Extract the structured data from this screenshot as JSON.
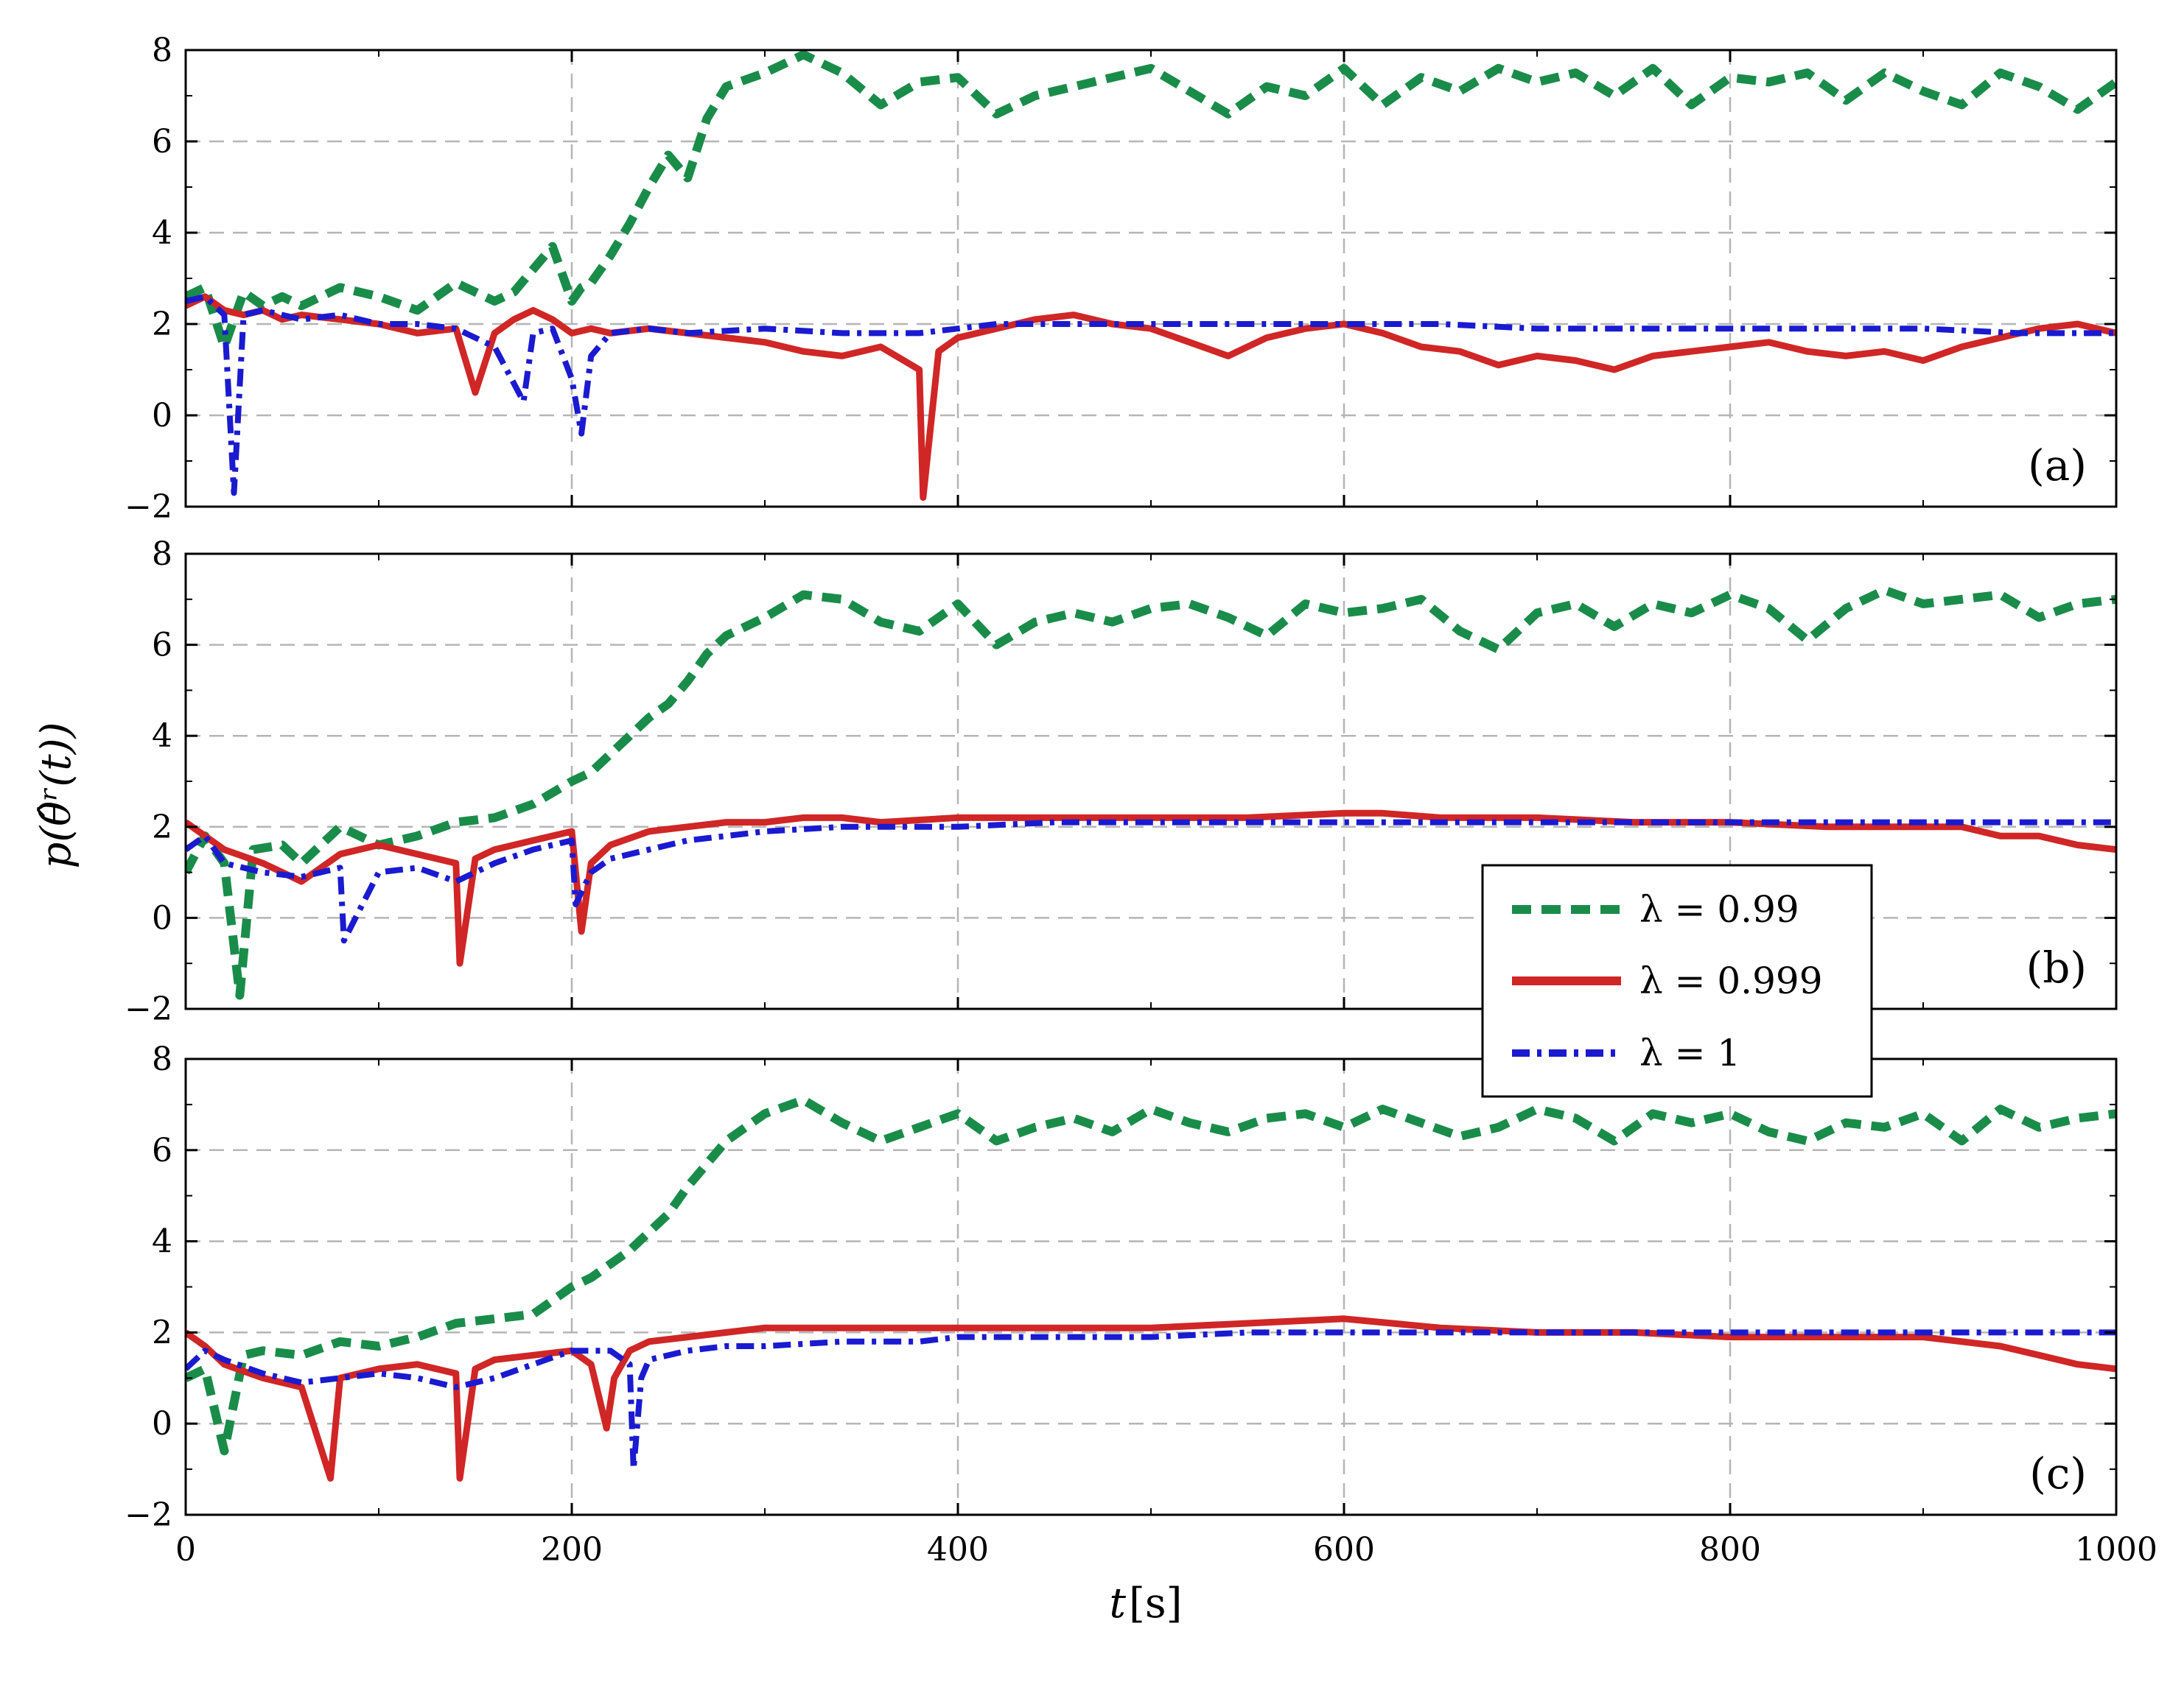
{
  "chart_data": [
    {
      "type": "line",
      "panel_label": "(a)",
      "x_range": [
        0,
        1000
      ],
      "ylim": [
        -2,
        8
      ],
      "xticks": [
        0,
        200,
        400,
        600,
        800,
        1000
      ],
      "yticks": [
        -2,
        0,
        2,
        4,
        6,
        8
      ],
      "grid": true,
      "series": [
        {
          "name": "λ = 0.99",
          "color": "#1a8c4a",
          "style": "dashed",
          "x": [
            0,
            10,
            20,
            30,
            40,
            50,
            60,
            80,
            100,
            120,
            140,
            160,
            170,
            180,
            190,
            200,
            205,
            210,
            220,
            230,
            240,
            250,
            260,
            270,
            280,
            300,
            320,
            340,
            360,
            380,
            400,
            420,
            440,
            460,
            480,
            500,
            520,
            540,
            560,
            580,
            600,
            620,
            640,
            660,
            680,
            700,
            720,
            740,
            760,
            780,
            800,
            820,
            840,
            860,
            880,
            900,
            920,
            940,
            960,
            980,
            1000
          ],
          "y": [
            2.6,
            2.8,
            1.5,
            2.7,
            2.4,
            2.6,
            2.4,
            2.8,
            2.6,
            2.3,
            2.9,
            2.5,
            2.7,
            3.2,
            3.7,
            2.5,
            2.8,
            2.9,
            3.5,
            4.2,
            5.0,
            5.7,
            5.2,
            6.5,
            7.2,
            7.5,
            7.9,
            7.5,
            6.8,
            7.3,
            7.4,
            6.6,
            7.0,
            7.2,
            7.4,
            7.6,
            7.1,
            6.6,
            7.2,
            7.0,
            7.6,
            6.8,
            7.4,
            7.1,
            7.6,
            7.3,
            7.5,
            7.0,
            7.6,
            6.8,
            7.4,
            7.3,
            7.5,
            6.9,
            7.5,
            7.1,
            6.8,
            7.5,
            7.2,
            6.7,
            7.3
          ]
        },
        {
          "name": "λ = 0.999",
          "color": "#d02626",
          "style": "solid",
          "x": [
            0,
            10,
            20,
            30,
            40,
            50,
            60,
            80,
            100,
            120,
            140,
            150,
            160,
            170,
            180,
            190,
            200,
            210,
            220,
            240,
            260,
            280,
            300,
            320,
            340,
            360,
            380,
            382,
            390,
            400,
            420,
            440,
            460,
            480,
            500,
            520,
            540,
            560,
            580,
            600,
            620,
            640,
            660,
            680,
            700,
            720,
            740,
            760,
            780,
            800,
            820,
            840,
            860,
            880,
            900,
            920,
            940,
            960,
            980,
            1000
          ],
          "y": [
            2.4,
            2.6,
            2.3,
            2.2,
            2.3,
            2.1,
            2.2,
            2.1,
            2.0,
            1.8,
            1.9,
            0.5,
            1.8,
            2.1,
            2.3,
            2.1,
            1.8,
            1.9,
            1.8,
            1.9,
            1.8,
            1.7,
            1.6,
            1.4,
            1.3,
            1.5,
            1.0,
            -1.8,
            1.4,
            1.7,
            1.9,
            2.1,
            2.2,
            2.0,
            1.9,
            1.6,
            1.3,
            1.7,
            1.9,
            2.0,
            1.8,
            1.5,
            1.4,
            1.1,
            1.3,
            1.2,
            1.0,
            1.3,
            1.4,
            1.5,
            1.6,
            1.4,
            1.3,
            1.4,
            1.2,
            1.5,
            1.7,
            1.9,
            2.0,
            1.8
          ]
        },
        {
          "name": "λ = 1",
          "color": "#1a1ad0",
          "style": "dashdot",
          "x": [
            0,
            10,
            20,
            25,
            30,
            40,
            60,
            80,
            100,
            120,
            140,
            160,
            175,
            180,
            190,
            200,
            205,
            210,
            220,
            240,
            260,
            300,
            340,
            380,
            400,
            420,
            440,
            460,
            480,
            500,
            550,
            600,
            650,
            700,
            750,
            800,
            850,
            900,
            950,
            1000
          ],
          "y": [
            2.5,
            2.6,
            2.2,
            -1.7,
            2.2,
            2.3,
            2.1,
            2.2,
            2.0,
            2.0,
            1.9,
            1.5,
            0.3,
            1.8,
            1.9,
            0.8,
            -0.4,
            1.3,
            1.8,
            1.9,
            1.8,
            1.9,
            1.8,
            1.8,
            1.9,
            2.0,
            2.0,
            2.0,
            2.0,
            2.0,
            2.0,
            2.0,
            2.0,
            1.9,
            1.9,
            1.9,
            1.9,
            1.9,
            1.8,
            1.8
          ]
        }
      ]
    },
    {
      "type": "line",
      "panel_label": "(b)",
      "x_range": [
        0,
        1000
      ],
      "ylim": [
        -2,
        8
      ],
      "xticks": [
        0,
        200,
        400,
        600,
        800,
        1000
      ],
      "yticks": [
        -2,
        0,
        2,
        4,
        6,
        8
      ],
      "grid": true,
      "series": [
        {
          "name": "λ = 0.99",
          "color": "#1a8c4a",
          "style": "dashed",
          "x": [
            0,
            10,
            20,
            28,
            35,
            50,
            60,
            80,
            100,
            120,
            140,
            160,
            180,
            200,
            210,
            220,
            230,
            240,
            250,
            260,
            270,
            280,
            300,
            320,
            340,
            360,
            380,
            400,
            420,
            440,
            460,
            480,
            500,
            520,
            540,
            560,
            580,
            600,
            620,
            640,
            660,
            680,
            700,
            720,
            740,
            760,
            780,
            800,
            820,
            840,
            860,
            880,
            900,
            920,
            940,
            960,
            980,
            1000
          ],
          "y": [
            1.0,
            1.8,
            1.2,
            -1.7,
            1.5,
            1.6,
            1.2,
            2.0,
            1.6,
            1.8,
            2.1,
            2.2,
            2.5,
            3.0,
            3.2,
            3.6,
            4.0,
            4.4,
            4.7,
            5.2,
            5.8,
            6.2,
            6.6,
            7.1,
            7.0,
            6.5,
            6.3,
            6.9,
            6.0,
            6.5,
            6.7,
            6.5,
            6.8,
            6.9,
            6.6,
            6.2,
            6.9,
            6.7,
            6.8,
            7.0,
            6.3,
            5.9,
            6.7,
            6.9,
            6.4,
            6.9,
            6.7,
            7.1,
            6.8,
            6.1,
            6.8,
            7.2,
            6.9,
            7.0,
            7.1,
            6.6,
            6.9,
            7.0
          ]
        },
        {
          "name": "λ = 0.999",
          "color": "#d02626",
          "style": "solid",
          "x": [
            0,
            10,
            20,
            40,
            60,
            80,
            100,
            120,
            140,
            142,
            150,
            160,
            180,
            200,
            205,
            210,
            220,
            240,
            260,
            280,
            300,
            320,
            340,
            360,
            400,
            450,
            500,
            550,
            600,
            620,
            650,
            700,
            750,
            800,
            850,
            900,
            920,
            940,
            960,
            980,
            1000
          ],
          "y": [
            2.1,
            1.8,
            1.5,
            1.2,
            0.8,
            1.4,
            1.6,
            1.4,
            1.2,
            -1.0,
            1.3,
            1.5,
            1.7,
            1.9,
            -0.3,
            1.2,
            1.6,
            1.9,
            2.0,
            2.1,
            2.1,
            2.2,
            2.2,
            2.1,
            2.2,
            2.2,
            2.2,
            2.2,
            2.3,
            2.3,
            2.2,
            2.2,
            2.1,
            2.1,
            2.0,
            2.0,
            2.0,
            1.8,
            1.8,
            1.6,
            1.5
          ]
        },
        {
          "name": "λ = 1",
          "color": "#1a1ad0",
          "style": "dashdot",
          "x": [
            0,
            10,
            20,
            40,
            60,
            80,
            82,
            100,
            120,
            140,
            160,
            180,
            200,
            202,
            210,
            220,
            240,
            260,
            280,
            300,
            340,
            380,
            400,
            450,
            500,
            550,
            600,
            650,
            700,
            750,
            800,
            850,
            900,
            950,
            1000
          ],
          "y": [
            1.5,
            1.8,
            1.2,
            1.0,
            0.9,
            1.1,
            -0.5,
            1.0,
            1.1,
            0.8,
            1.2,
            1.5,
            1.7,
            0.3,
            1.0,
            1.3,
            1.5,
            1.7,
            1.8,
            1.9,
            2.0,
            2.0,
            2.0,
            2.1,
            2.1,
            2.1,
            2.1,
            2.1,
            2.1,
            2.1,
            2.1,
            2.1,
            2.1,
            2.1,
            2.1
          ]
        }
      ]
    },
    {
      "type": "line",
      "panel_label": "(c)",
      "x_range": [
        0,
        1000
      ],
      "ylim": [
        -2,
        8
      ],
      "xticks": [
        0,
        200,
        400,
        600,
        800,
        1000
      ],
      "yticks": [
        -2,
        0,
        2,
        4,
        6,
        8
      ],
      "grid": true,
      "series": [
        {
          "name": "λ = 0.99",
          "color": "#1a8c4a",
          "style": "dashed",
          "x": [
            0,
            10,
            20,
            30,
            40,
            60,
            80,
            100,
            120,
            140,
            160,
            180,
            200,
            210,
            220,
            230,
            240,
            250,
            260,
            280,
            300,
            320,
            340,
            360,
            380,
            400,
            420,
            440,
            460,
            480,
            500,
            520,
            540,
            560,
            580,
            600,
            620,
            640,
            660,
            680,
            700,
            720,
            740,
            760,
            780,
            800,
            820,
            840,
            860,
            880,
            900,
            920,
            940,
            960,
            980,
            1000
          ],
          "y": [
            1.0,
            1.2,
            -0.6,
            1.5,
            1.6,
            1.5,
            1.8,
            1.7,
            1.9,
            2.2,
            2.3,
            2.4,
            3.0,
            3.2,
            3.5,
            3.8,
            4.2,
            4.6,
            5.2,
            6.2,
            6.8,
            7.1,
            6.6,
            6.2,
            6.5,
            6.8,
            6.2,
            6.5,
            6.7,
            6.4,
            6.9,
            6.6,
            6.4,
            6.7,
            6.8,
            6.5,
            6.9,
            6.6,
            6.3,
            6.5,
            6.9,
            6.7,
            6.2,
            6.8,
            6.6,
            6.8,
            6.4,
            6.2,
            6.6,
            6.5,
            6.8,
            6.2,
            6.9,
            6.5,
            6.7,
            6.8
          ]
        },
        {
          "name": "λ = 0.999",
          "color": "#d02626",
          "style": "solid",
          "x": [
            0,
            10,
            20,
            40,
            60,
            75,
            80,
            100,
            120,
            140,
            142,
            150,
            160,
            180,
            200,
            210,
            218,
            222,
            230,
            240,
            260,
            280,
            300,
            340,
            400,
            450,
            500,
            550,
            600,
            650,
            700,
            750,
            800,
            850,
            900,
            920,
            940,
            960,
            980,
            1000
          ],
          "y": [
            2.0,
            1.7,
            1.3,
            1.0,
            0.8,
            -1.2,
            1.0,
            1.2,
            1.3,
            1.1,
            -1.2,
            1.2,
            1.4,
            1.5,
            1.6,
            1.3,
            -0.1,
            1.0,
            1.6,
            1.8,
            1.9,
            2.0,
            2.1,
            2.1,
            2.1,
            2.1,
            2.1,
            2.2,
            2.3,
            2.1,
            2.0,
            2.0,
            1.9,
            1.9,
            1.9,
            1.8,
            1.7,
            1.5,
            1.3,
            1.2
          ]
        },
        {
          "name": "λ = 1",
          "color": "#1a1ad0",
          "style": "dashdot",
          "x": [
            0,
            10,
            20,
            40,
            60,
            80,
            100,
            120,
            140,
            160,
            180,
            200,
            220,
            230,
            232,
            236,
            240,
            260,
            280,
            300,
            340,
            380,
            400,
            450,
            500,
            550,
            600,
            650,
            700,
            750,
            800,
            850,
            900,
            950,
            1000
          ],
          "y": [
            1.2,
            1.6,
            1.4,
            1.1,
            0.9,
            1.0,
            1.1,
            1.0,
            0.8,
            1.0,
            1.3,
            1.6,
            1.6,
            1.3,
            -1.0,
            1.0,
            1.4,
            1.6,
            1.7,
            1.7,
            1.8,
            1.8,
            1.9,
            1.9,
            1.9,
            2.0,
            2.0,
            2.0,
            2.0,
            2.0,
            2.0,
            2.0,
            2.0,
            2.0,
            2.0
          ]
        }
      ]
    }
  ],
  "axes": {
    "xlabel_var": "t",
    "xlabel_unit": "[s]",
    "ylabel": "p(θ̂ʳ(t))"
  },
  "legend": {
    "placement": "center-right, overlapping panels (b) and (c)",
    "entries": [
      "λ = 0.99",
      "λ = 0.999",
      "λ = 1"
    ]
  }
}
